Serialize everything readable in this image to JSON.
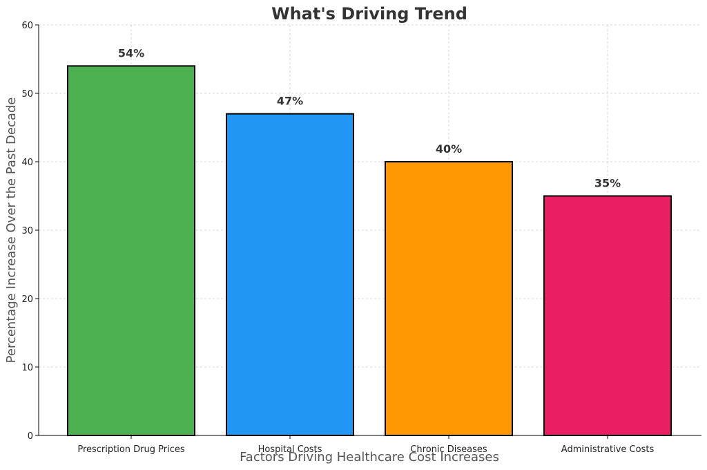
{
  "chart_data": {
    "type": "bar",
    "title": "What's Driving Trend",
    "xlabel": "Factors Driving Healthcare Cost Increases",
    "ylabel": "Percentage Increase Over the Past Decade",
    "categories": [
      "Prescription Drug Prices",
      "Hospital Costs",
      "Chronic Diseases",
      "Administrative Costs"
    ],
    "values": [
      54,
      47,
      40,
      35
    ],
    "data_labels": [
      "54%",
      "47%",
      "40%",
      "35%"
    ],
    "colors": [
      "#4CAF50",
      "#2196F3",
      "#FF9800",
      "#E91E63"
    ],
    "ylim": [
      0,
      60
    ],
    "yticks": [
      0,
      10,
      20,
      30,
      40,
      50,
      60
    ],
    "grid": true
  }
}
